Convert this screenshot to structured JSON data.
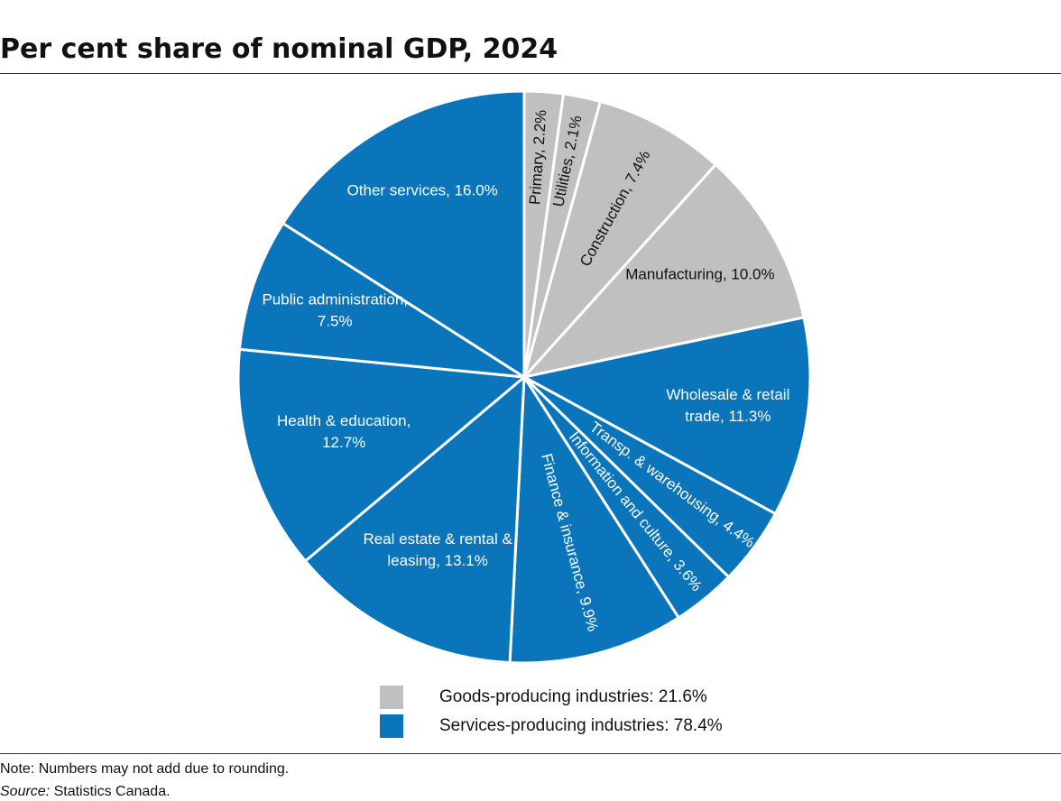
{
  "chart_data": {
    "type": "pie",
    "title": "Per cent share of nominal GDP, 2024",
    "labels": [
      [
        "Primary, 2.2%"
      ],
      [
        "Utilities, 2.1%"
      ],
      [
        "Construction, 7.4%"
      ],
      [
        "Manufacturing, 10.0%"
      ],
      [
        "Wholesale & retail",
        "trade, 11.3%"
      ],
      [
        "Transp. & warehousing, 4.4%"
      ],
      [
        "Information and culture, 3.6%"
      ],
      [
        "Finance & insurance, 9.9%"
      ],
      [
        "Real estate & rental &",
        "leasing, 13.1%"
      ],
      [
        "Health & education,",
        "12.7%"
      ],
      [
        "Public administration,",
        "7.5%"
      ],
      [
        "Other services, 16.0%"
      ]
    ],
    "values": [
      2.2,
      2.1,
      7.4,
      10.0,
      11.3,
      4.4,
      3.6,
      9.9,
      13.1,
      12.7,
      7.5,
      16.0
    ],
    "colors": [
      "#c0c0c0",
      "#c0c0c0",
      "#c0c0c0",
      "#c0c0c0",
      "#0a75bb",
      "#0a75bb",
      "#0a75bb",
      "#0a75bb",
      "#0a75bb",
      "#0a75bb",
      "#0a75bb",
      "#0a75bb"
    ],
    "legend": [
      {
        "label": "Goods-producing industries: 21.6%",
        "color": "#c0c0c0"
      },
      {
        "label": "Services-producing industries: 78.4%",
        "color": "#0a75bb"
      }
    ],
    "note": "Note: Numbers may not add due to rounding.",
    "source_label": "Source:",
    "source": "Statistics Canada."
  }
}
